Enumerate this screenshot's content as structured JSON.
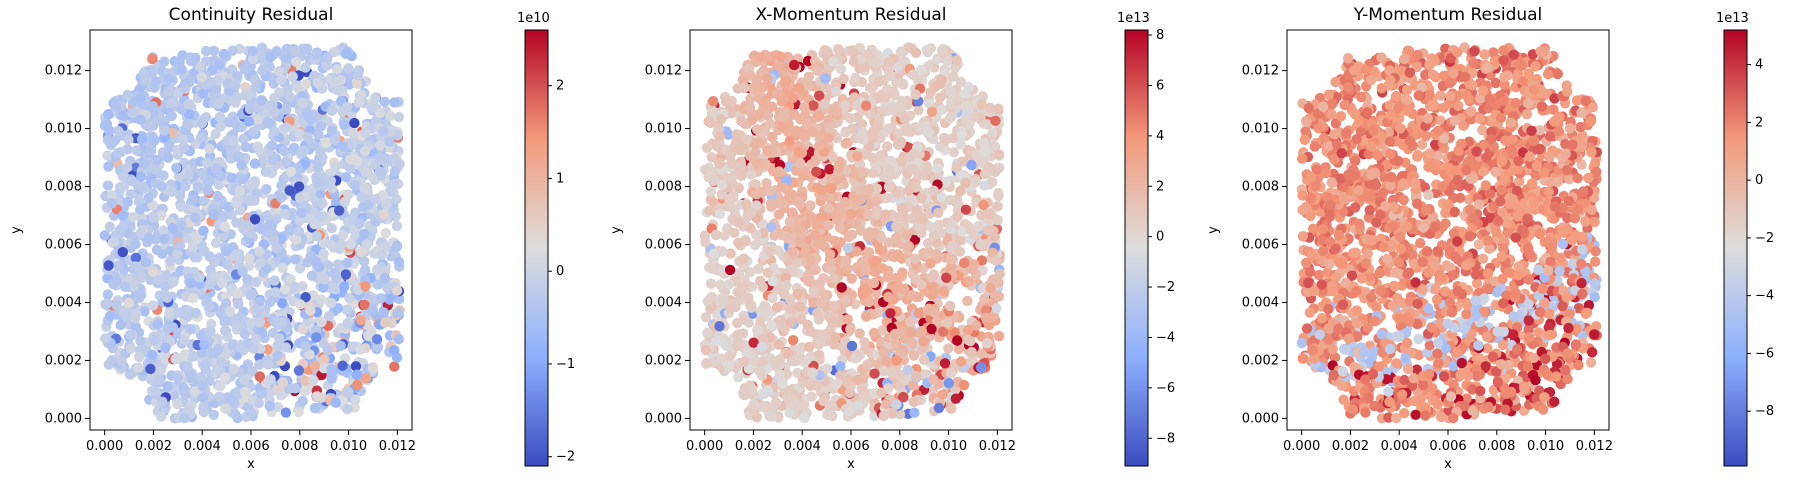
{
  "figure_title": "",
  "chart_data": [
    {
      "type": "scatter",
      "title": "Continuity Residual",
      "xlabel": "x",
      "ylabel": "y",
      "xlim": [
        -0.0006,
        0.0126
      ],
      "ylim": [
        -0.0004,
        0.0134
      ],
      "xticks": [
        "0.000",
        "0.002",
        "0.004",
        "0.006",
        "0.008",
        "0.010",
        "0.012"
      ],
      "yticks": [
        "0.000",
        "0.002",
        "0.004",
        "0.006",
        "0.008",
        "0.010",
        "0.012"
      ],
      "grid": false,
      "colormap": "coolwarm",
      "colorbar": {
        "multiplier": "1e10",
        "range": [
          -2.1,
          2.6
        ],
        "ticks": [
          "−2",
          "−1",
          "0",
          "1",
          "2"
        ],
        "tick_values": [
          -2,
          -1,
          0,
          1,
          2
        ]
      },
      "domain": {
        "description_values": "square plate x 0 to 0.0121, y 0 to 0.0128 with quarter-circle cut-outs of radius ~0.0018 at each corner",
        "x_range": [
          0.0,
          0.0121
        ],
        "y_range": [
          0.0,
          0.0128
        ],
        "corner_radius": 0.0018
      },
      "value_pattern": "mostly near 0 (light grey-blue); slightly negative in upper-left; positive (red) and negative (blue) clusters near right edge and bottom-right corner"
    },
    {
      "type": "scatter",
      "title": "X-Momentum Residual",
      "xlabel": "x",
      "ylabel": "y",
      "xlim": [
        -0.0006,
        0.0126
      ],
      "ylim": [
        -0.0004,
        0.0134
      ],
      "xticks": [
        "0.000",
        "0.002",
        "0.004",
        "0.006",
        "0.008",
        "0.010",
        "0.012"
      ],
      "yticks": [
        "0.000",
        "0.002",
        "0.004",
        "0.006",
        "0.008",
        "0.010",
        "0.012"
      ],
      "grid": false,
      "colormap": "coolwarm",
      "colorbar": {
        "multiplier": "1e13",
        "range": [
          -9.1,
          8.2
        ],
        "ticks": [
          "−8",
          "−6",
          "−4",
          "−2",
          "0",
          "2",
          "4",
          "6",
          "8"
        ],
        "tick_values": [
          -8,
          -6,
          -4,
          -2,
          0,
          2,
          4,
          6,
          8
        ]
      },
      "domain": {
        "x_range": [
          0.0,
          0.0121
        ],
        "y_range": [
          0.0,
          0.0128
        ],
        "corner_radius": 0.0018
      },
      "value_pattern": "near 0 (grey) in upper-left; positive (light red) band curving toward bottom-right; strong red and blue points along bottom edge and bottom-right corner"
    },
    {
      "type": "scatter",
      "title": "Y-Momentum Residual",
      "xlabel": "x",
      "ylabel": "y",
      "xlim": [
        -0.0006,
        0.0126
      ],
      "ylim": [
        -0.0004,
        0.0134
      ],
      "xticks": [
        "0.000",
        "0.002",
        "0.004",
        "0.006",
        "0.008",
        "0.010",
        "0.012"
      ],
      "yticks": [
        "0.000",
        "0.002",
        "0.004",
        "0.006",
        "0.008",
        "0.010",
        "0.012"
      ],
      "grid": false,
      "colormap": "coolwarm",
      "colorbar": {
        "multiplier": "1e13",
        "range": [
          -9.9,
          5.2
        ],
        "ticks": [
          "−8",
          "−6",
          "−4",
          "−2",
          "0",
          "2",
          "4"
        ],
        "tick_values": [
          -8,
          -6,
          -4,
          -2,
          0,
          2,
          4
        ]
      },
      "domain": {
        "x_range": [
          0.0,
          0.0121
        ],
        "y_range": [
          0.0,
          0.0128
        ],
        "corner_radius": 0.0018
      },
      "value_pattern": "mostly positive (salmon, ~1.5e13) everywhere; light-blue band in lower region; dark red clusters near bottom and bottom-right"
    }
  ]
}
